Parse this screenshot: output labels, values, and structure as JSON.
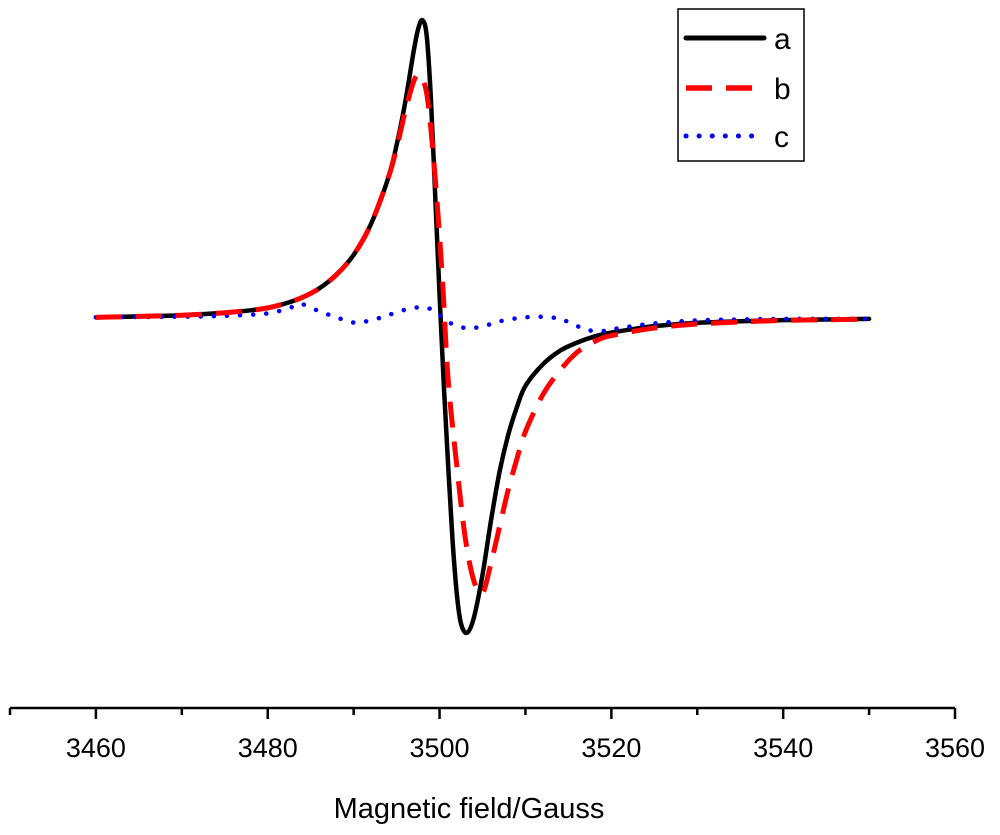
{
  "chart_data": {
    "type": "line",
    "title": "",
    "xlabel": "Magnetic field/Gauss",
    "ylabel": "",
    "xlim": [
      3450,
      3560
    ],
    "ylim": [
      -1.08,
      1.02
    ],
    "x_ticks": [
      "3460",
      "3480",
      "3500",
      "3520",
      "3540",
      "3560"
    ],
    "grid": false,
    "legend_position": "top-right",
    "series": [
      {
        "name": "a",
        "style": "solid",
        "color": "#000000",
        "points": [
          [
            3460,
            0.005
          ],
          [
            3465,
            0.008
          ],
          [
            3470,
            0.012
          ],
          [
            3475,
            0.02
          ],
          [
            3478,
            0.028
          ],
          [
            3480,
            0.036
          ],
          [
            3482,
            0.05
          ],
          [
            3484,
            0.07
          ],
          [
            3486,
            0.1
          ],
          [
            3488,
            0.145
          ],
          [
            3490,
            0.21
          ],
          [
            3492,
            0.31
          ],
          [
            3494,
            0.46
          ],
          [
            3495,
            0.57
          ],
          [
            3496,
            0.71
          ],
          [
            3497,
            0.88
          ],
          [
            3497.5,
            0.95
          ],
          [
            3498,
            0.98
          ],
          [
            3498.5,
            0.93
          ],
          [
            3499,
            0.72
          ],
          [
            3499.5,
            0.4
          ],
          [
            3500,
            0.08
          ],
          [
            3500.5,
            -0.22
          ],
          [
            3501,
            -0.48
          ],
          [
            3501.5,
            -0.72
          ],
          [
            3502,
            -0.9
          ],
          [
            3502.5,
            -1.0
          ],
          [
            3503.2,
            -1.03
          ],
          [
            3504,
            -0.98
          ],
          [
            3505,
            -0.84
          ],
          [
            3506,
            -0.66
          ],
          [
            3507,
            -0.5
          ],
          [
            3508,
            -0.38
          ],
          [
            3509,
            -0.29
          ],
          [
            3510,
            -0.22
          ],
          [
            3512,
            -0.15
          ],
          [
            3514,
            -0.105
          ],
          [
            3516,
            -0.078
          ],
          [
            3518,
            -0.058
          ],
          [
            3520,
            -0.045
          ],
          [
            3525,
            -0.024
          ],
          [
            3530,
            -0.013
          ],
          [
            3535,
            -0.008
          ],
          [
            3540,
            -0.004
          ],
          [
            3545,
            -0.002
          ],
          [
            3550,
            0.0
          ]
        ]
      },
      {
        "name": "b",
        "style": "dashed",
        "color": "#ff0000",
        "points": [
          [
            3460,
            0.005
          ],
          [
            3465,
            0.008
          ],
          [
            3470,
            0.012
          ],
          [
            3475,
            0.02
          ],
          [
            3478,
            0.028
          ],
          [
            3480,
            0.036
          ],
          [
            3482,
            0.05
          ],
          [
            3484,
            0.07
          ],
          [
            3486,
            0.1
          ],
          [
            3488,
            0.145
          ],
          [
            3490,
            0.21
          ],
          [
            3492,
            0.31
          ],
          [
            3494,
            0.46
          ],
          [
            3495,
            0.56
          ],
          [
            3496,
            0.68
          ],
          [
            3497,
            0.78
          ],
          [
            3497.7,
            0.8
          ],
          [
            3498.5,
            0.74
          ],
          [
            3499.2,
            0.56
          ],
          [
            3499.8,
            0.35
          ],
          [
            3500.4,
            0.1
          ],
          [
            3501,
            -0.2
          ],
          [
            3502,
            -0.48
          ],
          [
            3503,
            -0.72
          ],
          [
            3504,
            -0.86
          ],
          [
            3505,
            -0.9
          ],
          [
            3506,
            -0.8
          ],
          [
            3507,
            -0.68
          ],
          [
            3508,
            -0.56
          ],
          [
            3509,
            -0.46
          ],
          [
            3510,
            -0.37
          ],
          [
            3512,
            -0.25
          ],
          [
            3514,
            -0.17
          ],
          [
            3516,
            -0.11
          ],
          [
            3518,
            -0.075
          ],
          [
            3520,
            -0.055
          ],
          [
            3525,
            -0.03
          ],
          [
            3530,
            -0.017
          ],
          [
            3535,
            -0.01
          ],
          [
            3540,
            -0.005
          ],
          [
            3545,
            -0.003
          ],
          [
            3550,
            -0.001
          ]
        ]
      },
      {
        "name": "c",
        "style": "dotted",
        "color": "#0000ff",
        "points": [
          [
            3460,
            0.005
          ],
          [
            3465,
            0.006
          ],
          [
            3470,
            0.007
          ],
          [
            3475,
            0.01
          ],
          [
            3480,
            0.018
          ],
          [
            3483,
            0.04
          ],
          [
            3484,
            0.048
          ],
          [
            3486,
            0.025
          ],
          [
            3488,
            0.005
          ],
          [
            3490,
            -0.012
          ],
          [
            3492,
            -0.005
          ],
          [
            3494,
            0.012
          ],
          [
            3496,
            0.03
          ],
          [
            3498,
            0.038
          ],
          [
            3499.5,
            0.025
          ],
          [
            3501,
            -0.01
          ],
          [
            3503,
            -0.03
          ],
          [
            3505,
            -0.025
          ],
          [
            3507,
            -0.008
          ],
          [
            3510,
            0.005
          ],
          [
            3513,
            0.005
          ],
          [
            3515,
            -0.01
          ],
          [
            3517,
            -0.035
          ],
          [
            3519,
            -0.04
          ],
          [
            3521,
            -0.03
          ],
          [
            3525,
            -0.015
          ],
          [
            3530,
            -0.005
          ],
          [
            3535,
            -0.002
          ],
          [
            3540,
            0.0
          ],
          [
            3545,
            0.0
          ],
          [
            3550,
            0.0
          ]
        ]
      }
    ]
  }
}
